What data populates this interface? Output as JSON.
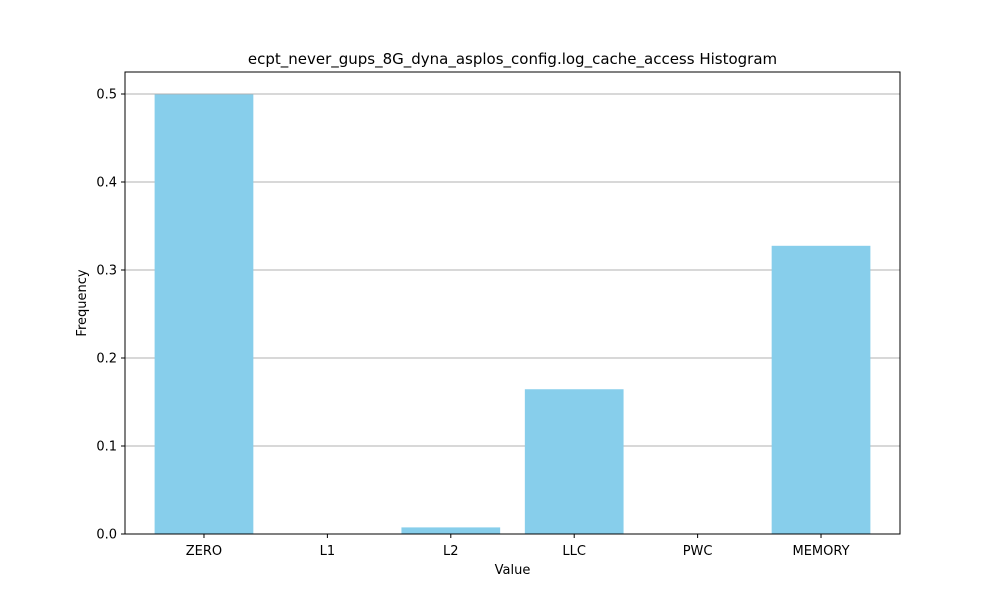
{
  "chart_data": {
    "type": "bar",
    "title": "ecpt_never_gups_8G_dyna_asplos_config.log_cache_access Histogram",
    "xlabel": "Value",
    "ylabel": "Frequency",
    "categories": [
      "ZERO",
      "L1",
      "L2",
      "LLC",
      "PWC",
      "MEMORY"
    ],
    "values": [
      0.4995,
      0.0,
      0.0075,
      0.1645,
      0.0,
      0.3275
    ],
    "ylim": [
      0,
      0.525
    ],
    "yticks": [
      0.0,
      0.1,
      0.2,
      0.3,
      0.4,
      0.5
    ],
    "ytick_labels": [
      "0.0",
      "0.1",
      "0.2",
      "0.3",
      "0.4",
      "0.5"
    ],
    "grid": "y",
    "bar_color": "#87ceeb",
    "grid_color": "#b0b0b0"
  }
}
